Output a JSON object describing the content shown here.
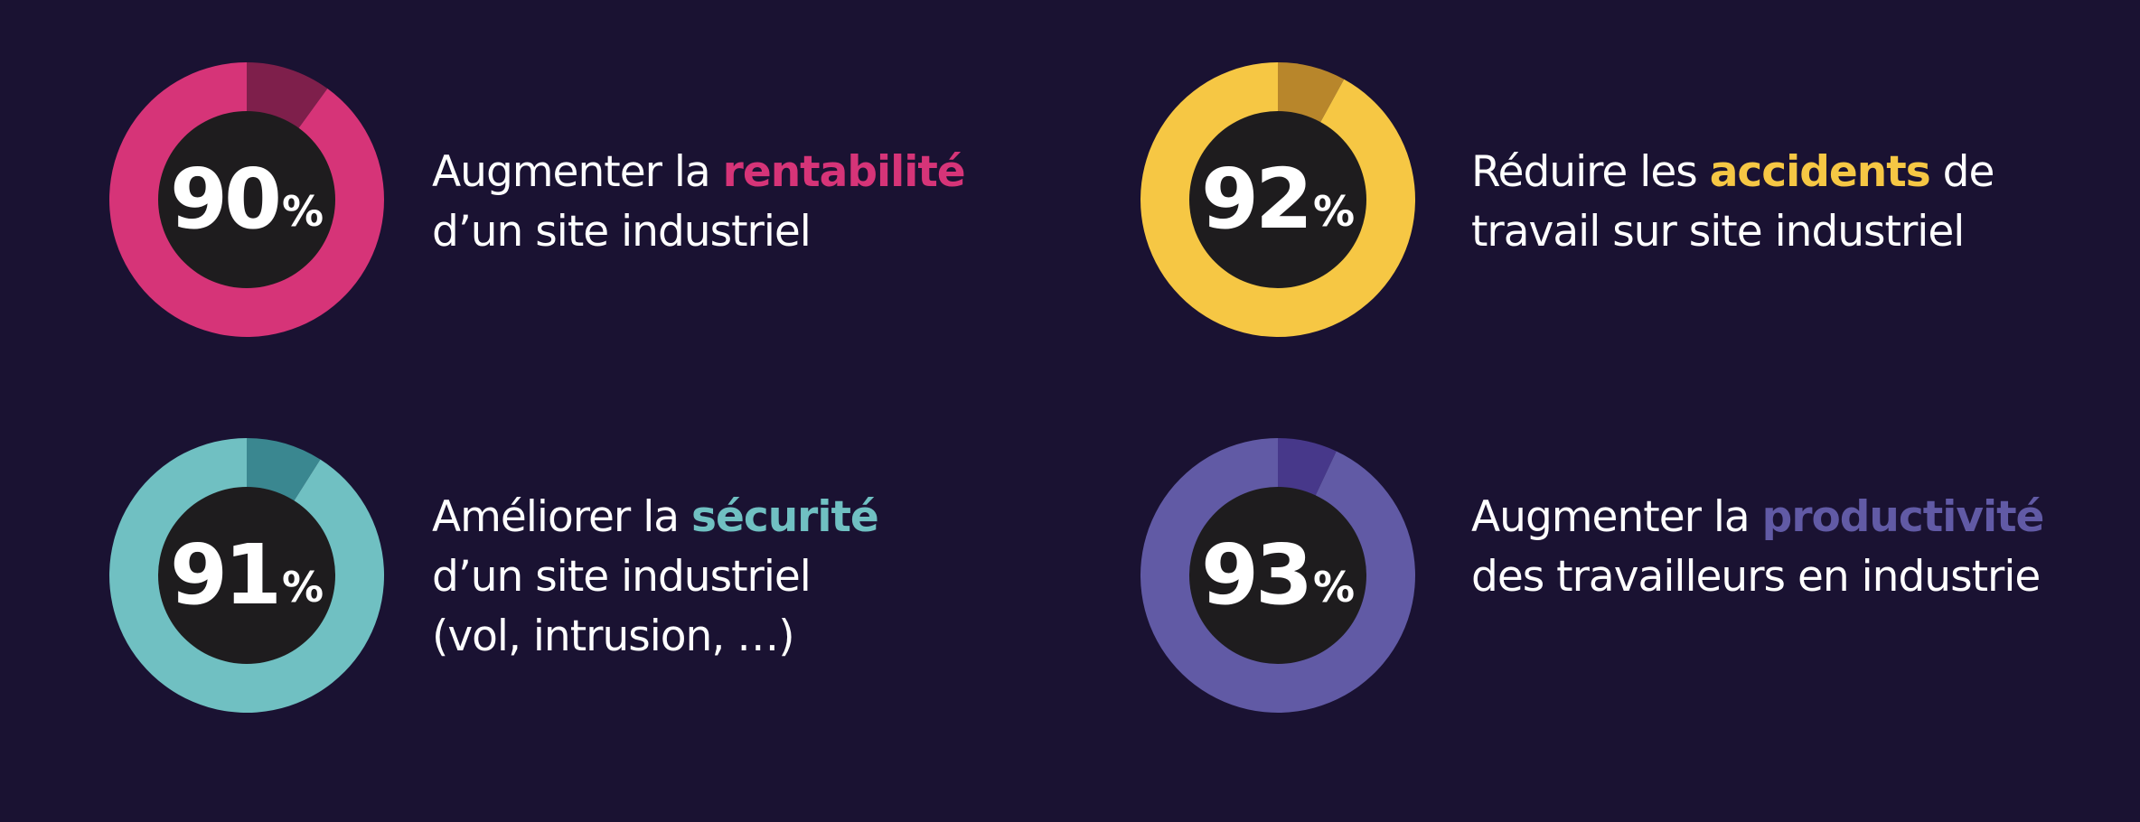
{
  "chart_data": [
    {
      "type": "pie",
      "value": 90,
      "unit": "%",
      "colors": {
        "main": "#d63478",
        "remainder": "#7e1f4b"
      },
      "caption": {
        "before": "Augmenter la ",
        "highlight": "rentabilité",
        "after": "",
        "lines": [
          "d’un site industriel"
        ]
      }
    },
    {
      "type": "pie",
      "value": 92,
      "unit": "%",
      "colors": {
        "main": "#f6c744",
        "remainder": "#b8862b"
      },
      "caption": {
        "before": "Réduire les ",
        "highlight": "accidents",
        "after": " de",
        "lines": [
          "travail sur site industriel"
        ]
      }
    },
    {
      "type": "pie",
      "value": 91,
      "unit": "%",
      "colors": {
        "main": "#70c0c2",
        "remainder": "#3a8790"
      },
      "caption": {
        "before": "Améliorer la ",
        "highlight": "sécurité",
        "after": "",
        "lines": [
          "d’un site industriel",
          "(vol, intrusion, …)"
        ]
      }
    },
    {
      "type": "pie",
      "value": 93,
      "unit": "%",
      "colors": {
        "main": "#615aa5",
        "remainder": "#47388a"
      },
      "caption": {
        "before": "Augmenter la ",
        "highlight": "productivité",
        "after": "",
        "lines": [
          "des travailleurs en industrie"
        ]
      }
    }
  ],
  "colors": {
    "background": "#1a1232",
    "hole": "#1e1c1e",
    "text": "#ffffff"
  }
}
